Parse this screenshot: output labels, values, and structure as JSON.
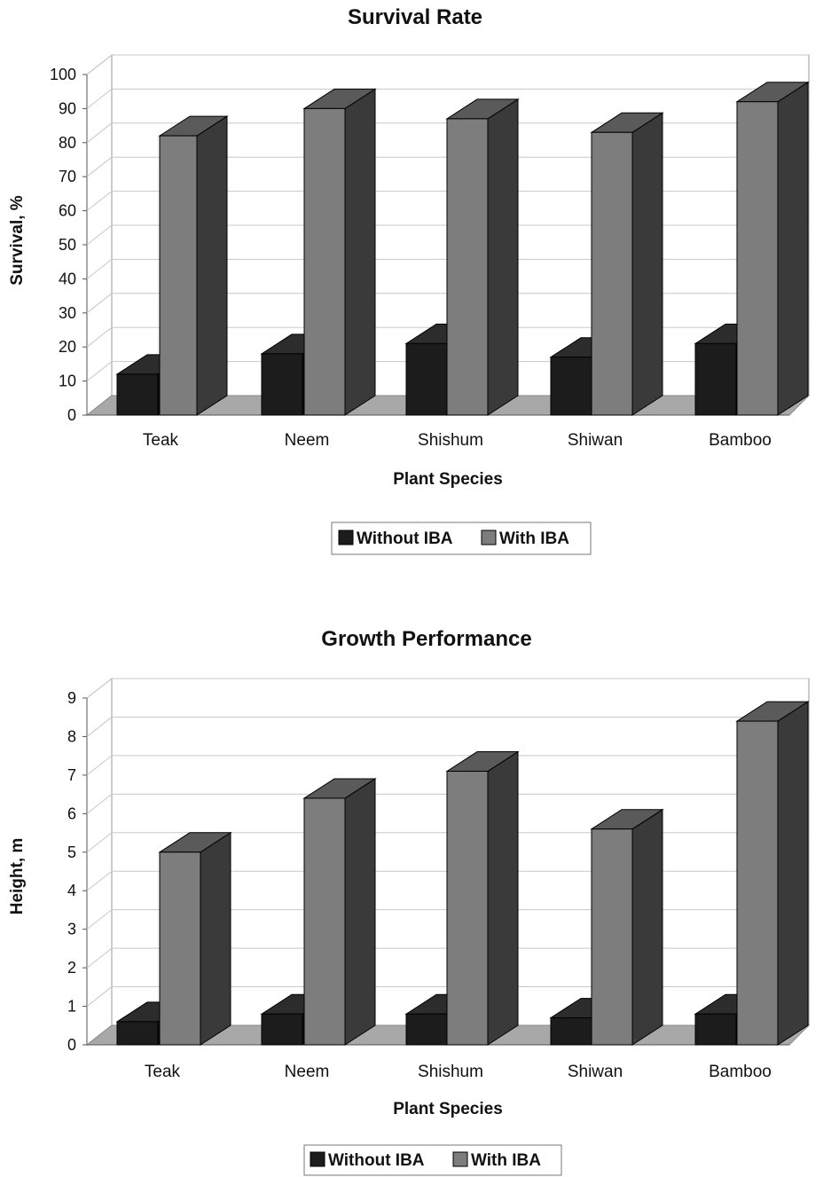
{
  "series_colors": {
    "without_front": "#1c1c1c",
    "without_side": "#0e0e0e",
    "without_top": "#2c2c2c",
    "with_front": "#7d7d7d",
    "with_side": "#3a3a3a",
    "with_top": "#5a5a5a",
    "floor": "#a8a8a8",
    "grid": "#c8c8c8"
  },
  "chart_data": [
    {
      "type": "bar",
      "title": "Survival Rate",
      "xlabel": "Plant Species",
      "ylabel": "Survival, %",
      "categories": [
        "Teak",
        "Neem",
        "Shishum",
        "Shiwan",
        "Bamboo"
      ],
      "series": [
        {
          "name": "Without IBA",
          "values": [
            12,
            18,
            21,
            17,
            21
          ]
        },
        {
          "name": "With IBA",
          "values": [
            82,
            90,
            87,
            83,
            92
          ]
        }
      ],
      "ylim": [
        0,
        100
      ],
      "yticks": [
        "0",
        "10",
        "20",
        "30",
        "40",
        "50",
        "60",
        "70",
        "80",
        "90",
        "100"
      ],
      "grid": true,
      "legend": "bottom"
    },
    {
      "type": "bar",
      "title": "Growth Performance",
      "xlabel": "Plant Species",
      "ylabel": "Height, m",
      "categories": [
        "Teak",
        "Neem",
        "Shishum",
        "Shiwan",
        "Bamboo"
      ],
      "series": [
        {
          "name": "Without IBA",
          "values": [
            0.6,
            0.8,
            0.8,
            0.7,
            0.8
          ]
        },
        {
          "name": "With IBA",
          "values": [
            5.0,
            6.4,
            7.1,
            5.6,
            8.4
          ]
        }
      ],
      "ylim": [
        0,
        9
      ],
      "yticks": [
        "0",
        "1",
        "2",
        "3",
        "4",
        "5",
        "6",
        "7",
        "8",
        "9"
      ],
      "grid": true,
      "legend": "bottom"
    }
  ]
}
